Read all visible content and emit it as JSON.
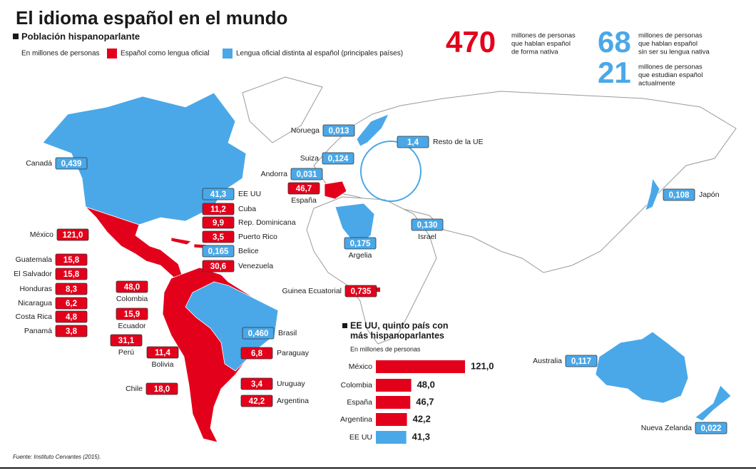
{
  "title": "El idioma español en el mundo",
  "section_title": "Población hispanoparlante",
  "legend": {
    "unit": "En millones de personas",
    "items": [
      {
        "label": "Español como lengua oficial",
        "color": "#e3001b"
      },
      {
        "label": "Lengua oficial distinta al español (principales países)",
        "color": "#4aa8e8"
      }
    ]
  },
  "stats": [
    {
      "number": "470",
      "color": "#e3001b",
      "lines": [
        "millones de personas",
        "que hablan español",
        "de forma nativa"
      ]
    },
    {
      "number": "68",
      "color": "#4aa8e8",
      "lines": [
        "millones de personas",
        "que hablan español",
        "sin ser su lengua nativa"
      ]
    },
    {
      "number": "21",
      "color": "#4aa8e8",
      "lines": [
        "millones de personas",
        "que estudian español",
        "actualmente"
      ]
    }
  ],
  "map_labels": [
    {
      "name": "Canadá",
      "value": "0,439",
      "official": false
    },
    {
      "name": "Noruega",
      "value": "0,013",
      "official": false
    },
    {
      "name": "Resto de la UE",
      "value": "1,4",
      "official": false
    },
    {
      "name": "Suiza",
      "value": "0,124",
      "official": false
    },
    {
      "name": "Andorra",
      "value": "0,031",
      "official": false
    },
    {
      "name": "EE UU",
      "value": "41,3",
      "official": false
    },
    {
      "name": "España",
      "value": "46,7",
      "official": true
    },
    {
      "name": "Japón",
      "value": "0,108",
      "official": false
    },
    {
      "name": "Cuba",
      "value": "11,2",
      "official": true
    },
    {
      "name": "Rep. Dominicana",
      "value": "9,9",
      "official": true
    },
    {
      "name": "Puerto Rico",
      "value": "3,5",
      "official": true
    },
    {
      "name": "Belice",
      "value": "0,165",
      "official": false
    },
    {
      "name": "Venezuela",
      "value": "30,6",
      "official": true
    },
    {
      "name": "México",
      "value": "121,0",
      "official": true
    },
    {
      "name": "Israel",
      "value": "0,130",
      "official": false
    },
    {
      "name": "Argelia",
      "value": "0,175",
      "official": false
    },
    {
      "name": "Guatemala",
      "value": "15,8",
      "official": true
    },
    {
      "name": "El Salvador",
      "value": "15,8",
      "official": true
    },
    {
      "name": "Honduras",
      "value": "8,3",
      "official": true
    },
    {
      "name": "Nicaragua",
      "value": "6,2",
      "official": true
    },
    {
      "name": "Costa Rica",
      "value": "4,8",
      "official": true
    },
    {
      "name": "Panamá",
      "value": "3,8",
      "official": true
    },
    {
      "name": "Colombia",
      "value": "48,0",
      "official": true
    },
    {
      "name": "Ecuador",
      "value": "15,9",
      "official": true
    },
    {
      "name": "Guinea Ecuatorial",
      "value": "0,735",
      "official": true
    },
    {
      "name": "Brasil",
      "value": "0,460",
      "official": false
    },
    {
      "name": "Perú",
      "value": "31,1",
      "official": true
    },
    {
      "name": "Paraguay",
      "value": "6,8",
      "official": true
    },
    {
      "name": "Bolivia",
      "value": "11,4",
      "official": true
    },
    {
      "name": "Chile",
      "value": "18,0",
      "official": true
    },
    {
      "name": "Uruguay",
      "value": "3,4",
      "official": true
    },
    {
      "name": "Argentina",
      "value": "42,2",
      "official": true
    },
    {
      "name": "Australia",
      "value": "0,117",
      "official": false
    },
    {
      "name": "Nueva Zelanda",
      "value": "0,022",
      "official": false
    }
  ],
  "chart_data": {
    "type": "bar",
    "orientation": "horizontal",
    "title": [
      "EE UU, quinto país con",
      "más hispanoparlantes"
    ],
    "subtitle": "En millones de personas",
    "categories": [
      "México",
      "Colombia",
      "España",
      "Argentina",
      "EE UU"
    ],
    "values": [
      121.0,
      48.0,
      46.7,
      42.2,
      41.3
    ],
    "value_labels": [
      "121,0",
      "48,0",
      "46,7",
      "42,2",
      "41,3"
    ],
    "colors": [
      "#e3001b",
      "#e3001b",
      "#e3001b",
      "#e3001b",
      "#4aa8e8"
    ]
  },
  "source": "Fuente: Instituto Cervantes (2015)."
}
